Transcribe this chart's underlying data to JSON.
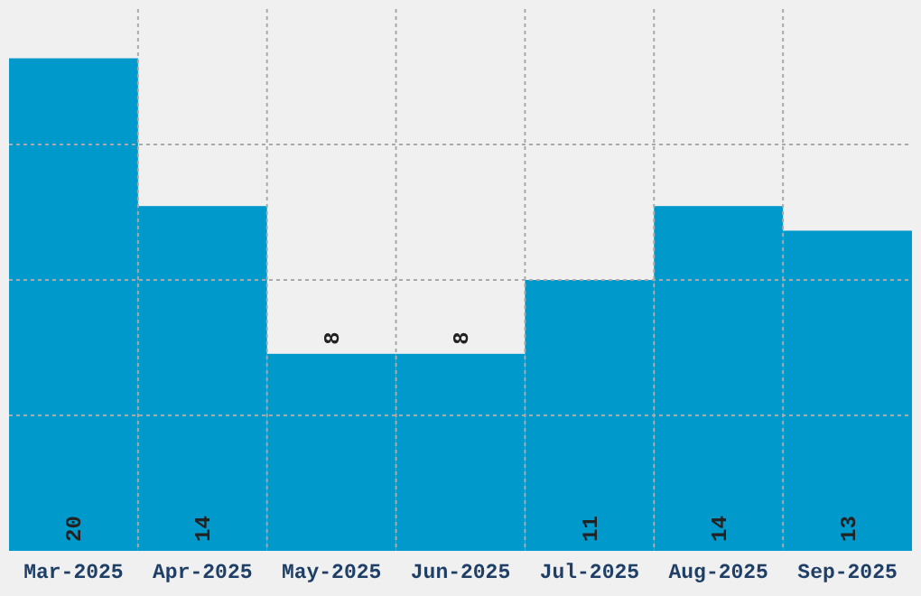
{
  "chart_data": {
    "type": "bar",
    "categories": [
      "Mar-2025",
      "Apr-2025",
      "May-2025",
      "Jun-2025",
      "Jul-2025",
      "Aug-2025",
      "Sep-2025"
    ],
    "values": [
      20,
      14,
      8,
      8,
      11,
      14,
      13
    ],
    "color": "#0099cc",
    "ylim": [
      0,
      22
    ],
    "yticks": [
      {
        "value": 5.5,
        "label": null
      },
      {
        "value": 11,
        "label": null
      },
      {
        "value": 16.5,
        "label": null
      }
    ],
    "tick_labels": "x",
    "grid": true,
    "data_labels": true
  }
}
